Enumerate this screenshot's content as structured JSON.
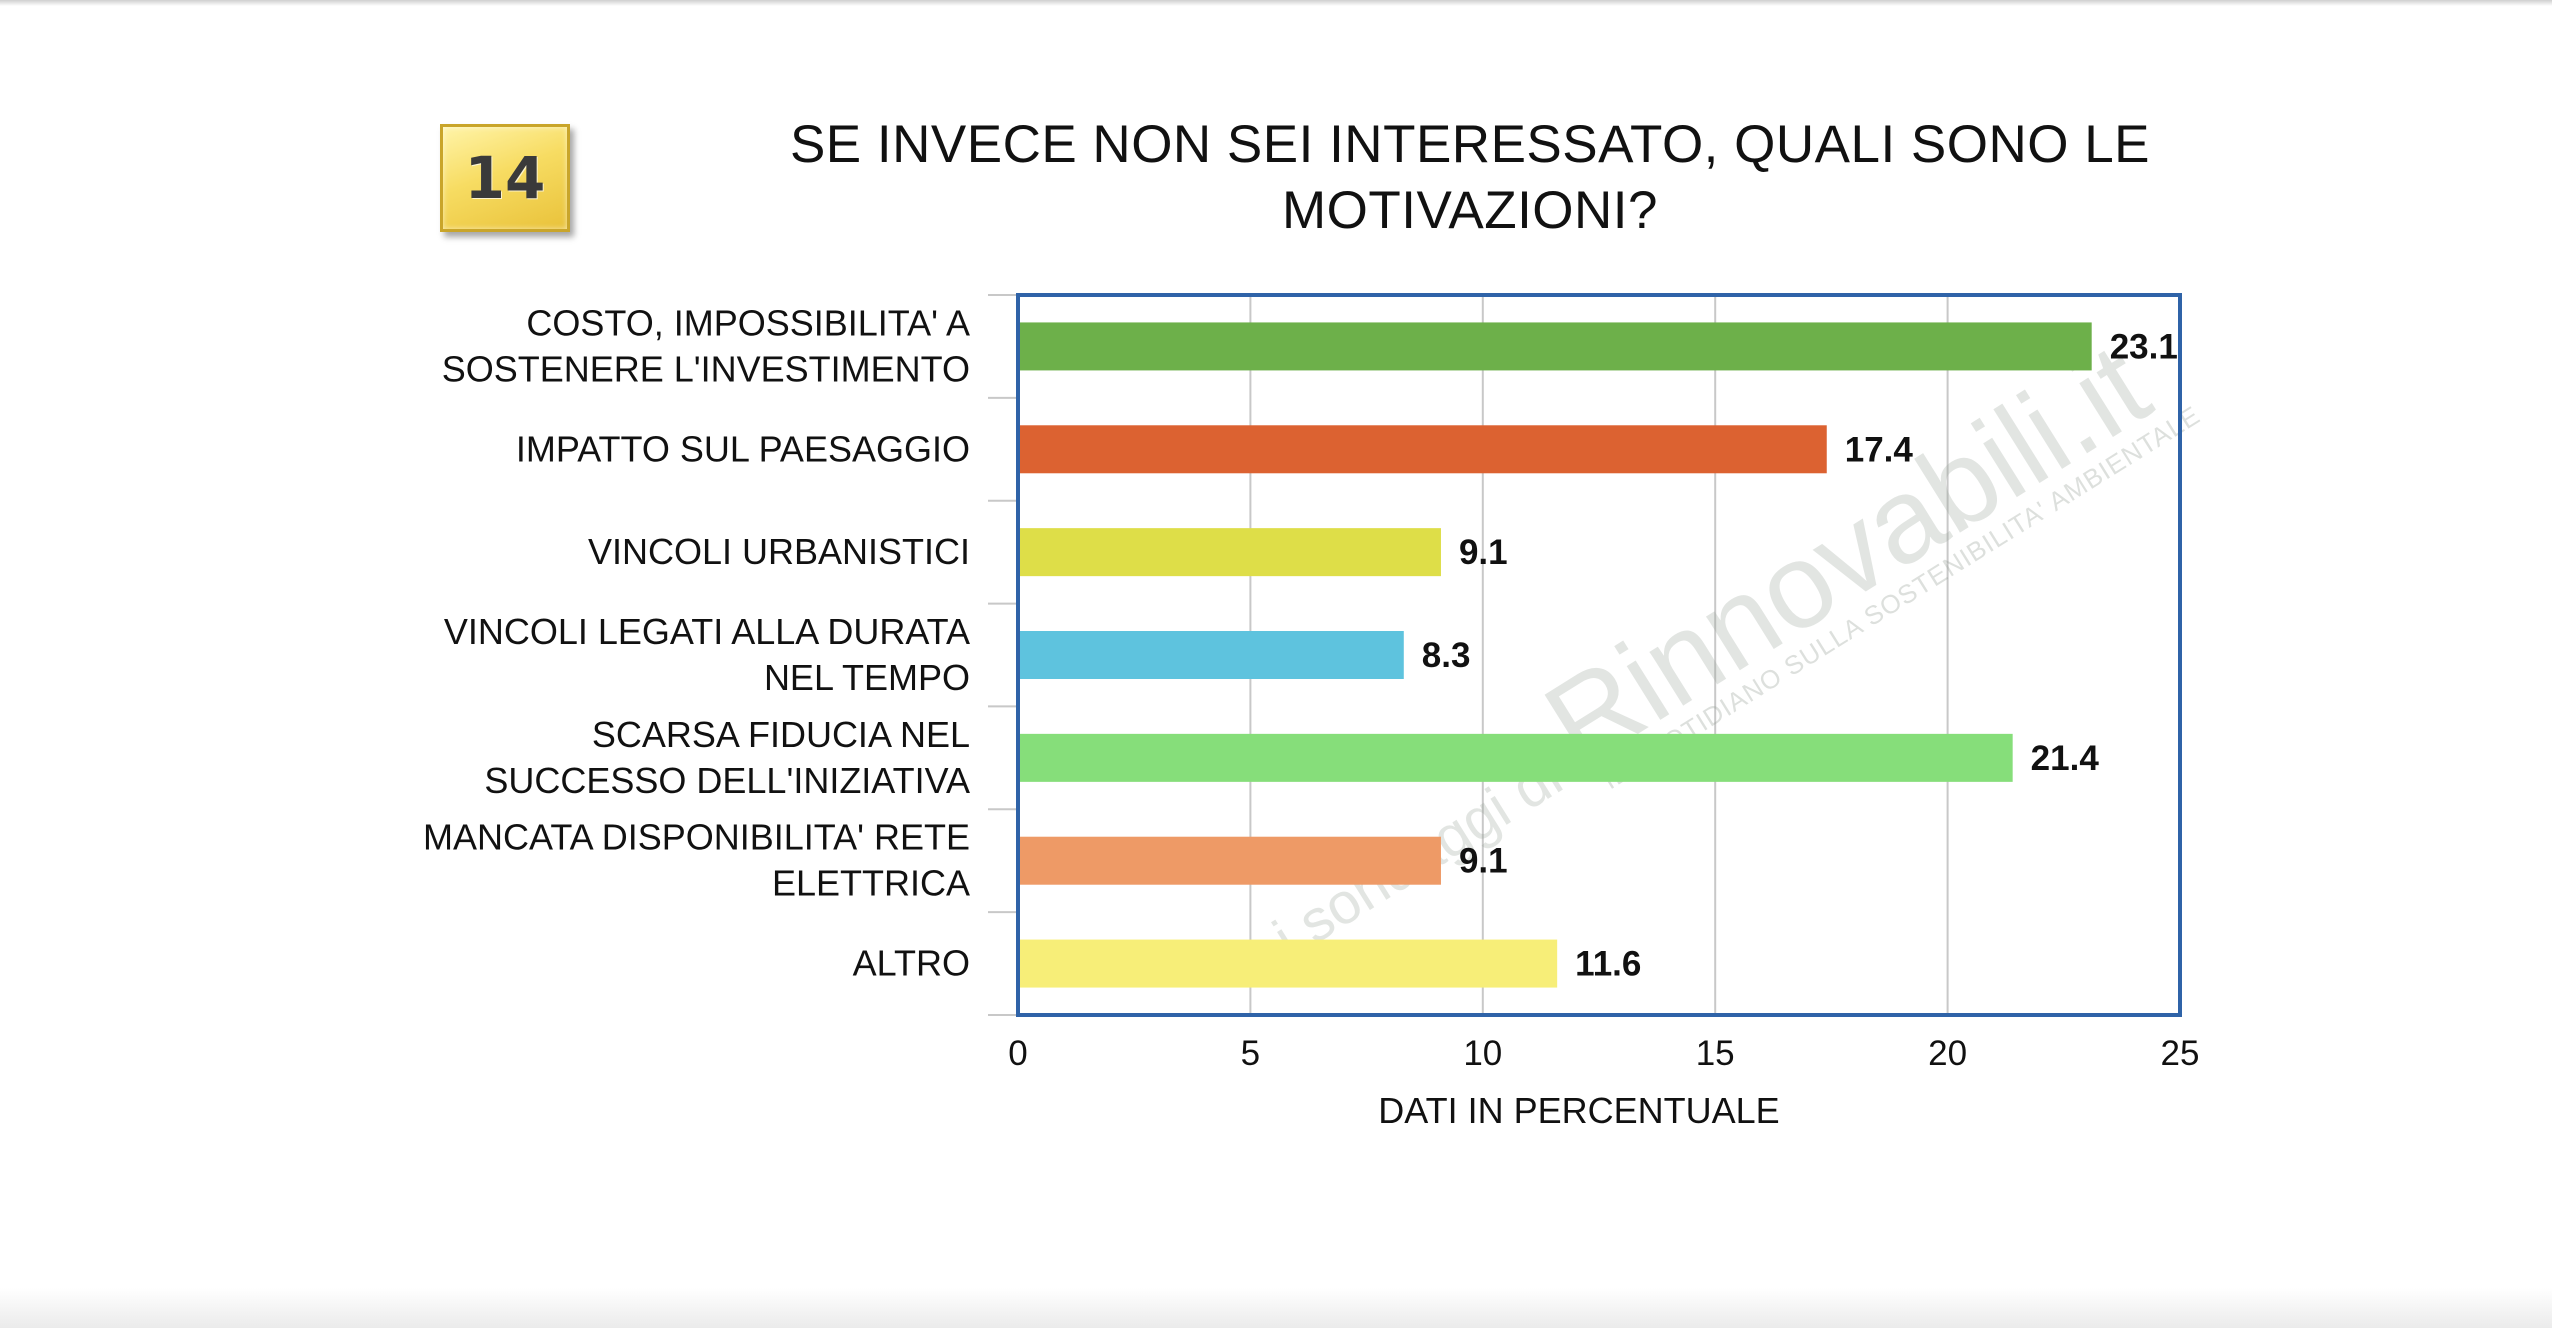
{
  "badge": {
    "number": "14"
  },
  "title_lines": [
    "SE INVECE NON SEI INTERESSATO, QUALI SONO LE",
    "MOTIVAZIONI?"
  ],
  "watermark": {
    "prefix": "i sondaggi di",
    "brand": "Rinnovabili.it",
    "tagline": "IL QUOTIDIANO SULLA SOSTENIBILITA' AMBIENTALE"
  },
  "chart_data": {
    "type": "bar",
    "orientation": "horizontal",
    "title": "SE INVECE NON SEI INTERESSATO, QUALI SONO LE MOTIVAZIONI?",
    "xlabel": "DATI IN PERCENTUALE",
    "ylabel": "",
    "xlim": [
      0,
      25
    ],
    "x_ticks": [
      "0",
      "5",
      "10",
      "15",
      "20",
      "25"
    ],
    "grid": "vertical",
    "categories": [
      [
        "COSTO, IMPOSSIBILITA' A",
        "SOSTENERE L'INVESTIMENTO"
      ],
      [
        "IMPATTO SUL PAESAGGIO"
      ],
      [
        "VINCOLI URBANISTICI"
      ],
      [
        "VINCOLI LEGATI ALLA DURATA",
        "NEL TEMPO"
      ],
      [
        "SCARSA FIDUCIA NEL",
        "SUCCESSO DELL'INIZIATIVA"
      ],
      [
        "MANCATA DISPONIBILITA' RETE",
        "ELETTRICA"
      ],
      [
        "ALTRO"
      ]
    ],
    "values": [
      23.1,
      17.4,
      9.1,
      8.3,
      21.4,
      9.1,
      11.6
    ],
    "value_labels": [
      "23.1",
      "17.4",
      "9.1",
      "8.3",
      "21.4",
      "9.1",
      "11.6"
    ],
    "colors": [
      "#6db04a",
      "#dc6231",
      "#dede48",
      "#5ec3de",
      "#86de7a",
      "#ee9a66",
      "#f7ee78"
    ]
  }
}
